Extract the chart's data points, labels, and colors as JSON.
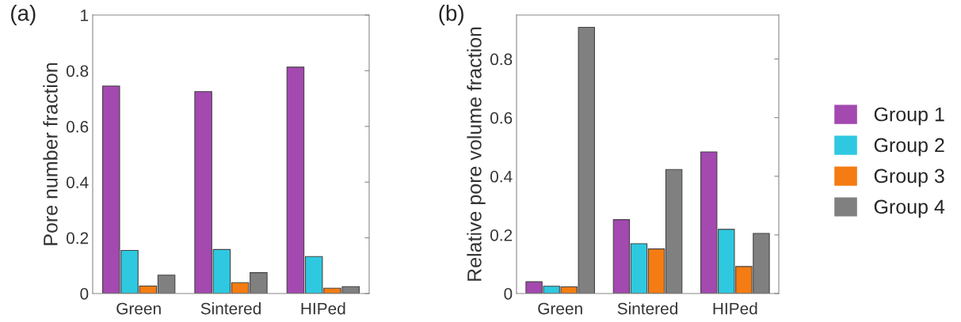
{
  "chart_data": [
    {
      "type": "bar",
      "title": "(a)",
      "ylabel": "Pore number fraction",
      "categories": [
        "Green",
        "Sintered",
        "HIPed"
      ],
      "ylim": [
        0,
        1
      ],
      "yticks": [
        0,
        0.2,
        0.4,
        0.6,
        0.8,
        1
      ],
      "grid": false,
      "legend": false,
      "series": [
        {
          "color": "#a349b0",
          "values": [
            0.745,
            0.725,
            0.813
          ]
        },
        {
          "color": "#2ec9e0",
          "values": [
            0.155,
            0.158,
            0.133
          ]
        },
        {
          "color": "#f47c12",
          "values": [
            0.027,
            0.039,
            0.019
          ]
        },
        {
          "color": "#808080",
          "values": [
            0.066,
            0.075,
            0.025
          ]
        }
      ]
    },
    {
      "type": "bar",
      "title": "(b)",
      "ylabel": "Relative pore volume fraction",
      "categories": [
        "Green",
        "Sintered",
        "HIPed"
      ],
      "ylim": [
        0,
        0.95
      ],
      "yticks": [
        0,
        0.2,
        0.4,
        0.6,
        0.8
      ],
      "grid": false,
      "legend": "right",
      "series": [
        {
          "name": "Group 1",
          "color": "#a349b0",
          "values": [
            0.04,
            0.252,
            0.483
          ]
        },
        {
          "name": "Group 2",
          "color": "#2ec9e0",
          "values": [
            0.025,
            0.17,
            0.219
          ]
        },
        {
          "name": "Group 3",
          "color": "#f47c12",
          "values": [
            0.023,
            0.152,
            0.092
          ]
        },
        {
          "name": "Group 4",
          "color": "#808080",
          "values": [
            0.908,
            0.423,
            0.205
          ]
        }
      ]
    }
  ]
}
